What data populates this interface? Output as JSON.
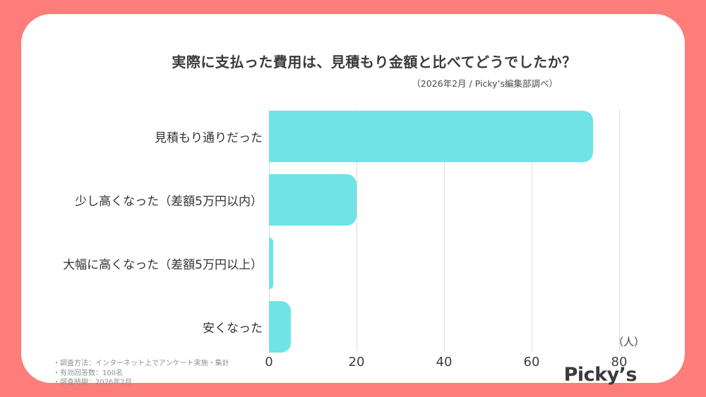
{
  "frame": {
    "background_color": "#fc7d79",
    "card_color": "#ffffff"
  },
  "header": {
    "title": "実際に支払った費用は、見積もり金額と比べてどうでしたか？",
    "subtitle": "（2026年2月 / Picky’s編集部調べ）"
  },
  "chart_data": {
    "type": "bar",
    "orientation": "horizontal",
    "title": "実際に支払った費用は、見積もり金額と比べてどうでしたか？",
    "categories": [
      "見積もり通りだった",
      "少し高くなった（差額5万円以内）",
      "大幅に高くなった（差額5万円以上）",
      "安くなった"
    ],
    "values": [
      74,
      20,
      1,
      5
    ],
    "x_ticks": [
      0,
      20,
      40,
      60,
      80
    ],
    "xlim": [
      0,
      80
    ],
    "xlabel": "（人）",
    "ylabel": "",
    "grid": true,
    "legend": false,
    "bar_color": "#6fe3e6",
    "gridline_color": "#dcdcdc"
  },
  "notes": {
    "lines": [
      "・調査方法：インターネット上でアンケート実施・集計",
      "・有効回答数：100名",
      "・調査時期：2026年2月"
    ]
  },
  "logo": {
    "text": "Picky’s"
  }
}
